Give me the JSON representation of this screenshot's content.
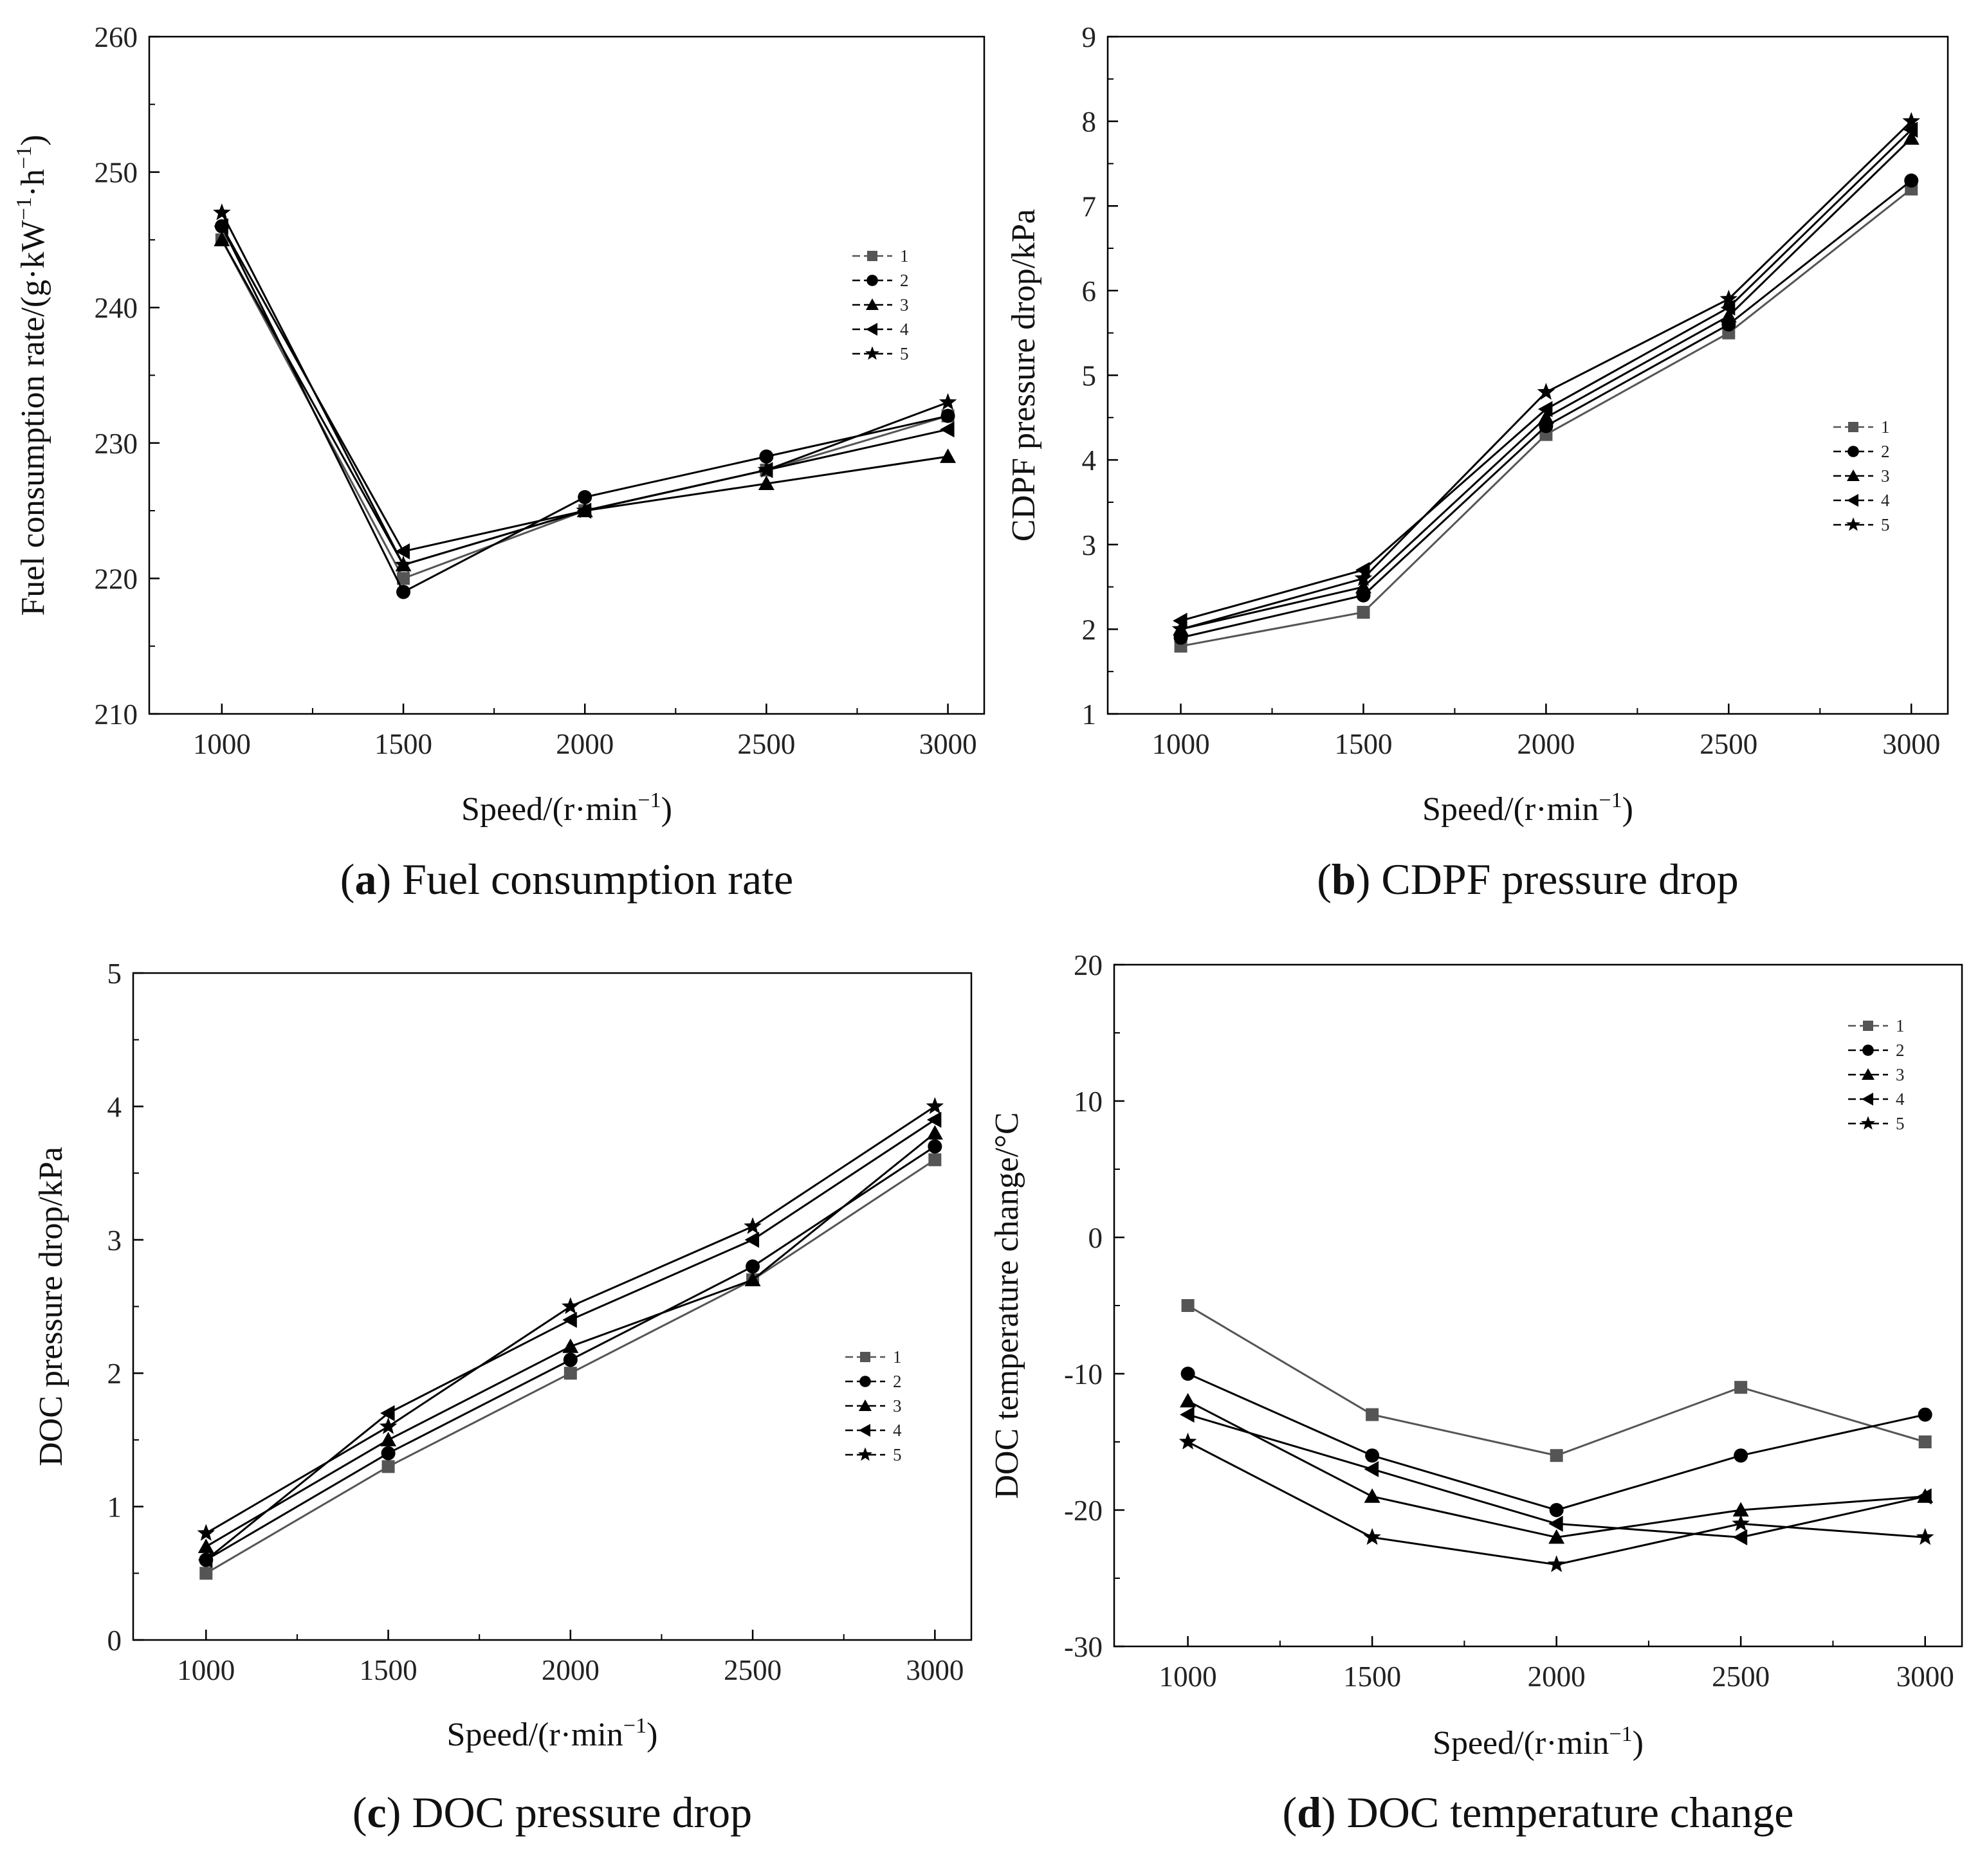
{
  "chart_data": [
    {
      "id": "a",
      "type": "line",
      "caption_letter": "a",
      "caption_text": "Fuel consumption rate",
      "ylabel": "Fuel consumption rate/(g·kW",
      "ylabel_sup1": "−1",
      "ylabel_mid": "·h",
      "ylabel_sup2": "−1",
      "ylabel_end": ")",
      "xlabel": "Speed/(r·min",
      "xlabel_sup": "−1",
      "xlabel_end": ")",
      "x": [
        1000,
        1500,
        2000,
        2500,
        3000
      ],
      "xlim": [
        800,
        3100
      ],
      "ylim": [
        210,
        260
      ],
      "yticks": [
        210,
        220,
        230,
        240,
        250,
        260
      ],
      "legend_position": "right-middle",
      "series": [
        {
          "name": "1",
          "marker": "square",
          "values": [
            245,
            220,
            225,
            228,
            232
          ]
        },
        {
          "name": "2",
          "marker": "circle",
          "values": [
            246,
            219,
            226,
            229,
            232
          ]
        },
        {
          "name": "3",
          "marker": "triangle",
          "values": [
            245,
            221,
            225,
            227,
            229
          ]
        },
        {
          "name": "4",
          "marker": "left-triangle",
          "values": [
            246,
            222,
            225,
            228,
            231
          ]
        },
        {
          "name": "5",
          "marker": "star",
          "values": [
            247,
            221,
            225,
            228,
            233
          ]
        }
      ]
    },
    {
      "id": "b",
      "type": "line",
      "caption_letter": "b",
      "caption_text": "CDPF pressure drop",
      "ylabel": "CDPF pressure drop/kPa",
      "xlabel": "Speed/(r·min",
      "xlabel_sup": "−1",
      "xlabel_end": ")",
      "x": [
        1000,
        1500,
        2000,
        2500,
        3000
      ],
      "xlim": [
        800,
        3100
      ],
      "ylim": [
        1,
        9
      ],
      "yticks": [
        1,
        2,
        3,
        4,
        5,
        6,
        7,
        8,
        9
      ],
      "legend_position": "right-middle",
      "series": [
        {
          "name": "1",
          "marker": "square",
          "values": [
            1.8,
            2.2,
            4.3,
            5.5,
            7.2
          ]
        },
        {
          "name": "2",
          "marker": "circle",
          "values": [
            1.9,
            2.4,
            4.4,
            5.6,
            7.3
          ]
        },
        {
          "name": "3",
          "marker": "triangle",
          "values": [
            2.0,
            2.5,
            4.5,
            5.7,
            7.8
          ]
        },
        {
          "name": "4",
          "marker": "left-triangle",
          "values": [
            2.1,
            2.7,
            4.6,
            5.8,
            7.9
          ]
        },
        {
          "name": "5",
          "marker": "star",
          "values": [
            2.0,
            2.6,
            4.8,
            5.9,
            8.0
          ]
        }
      ]
    },
    {
      "id": "c",
      "type": "line",
      "caption_letter": "c",
      "caption_text": "DOC pressure drop",
      "ylabel": "DOC pressure drop/kPa",
      "xlabel": "Speed/(r·min",
      "xlabel_sup": "−1",
      "xlabel_end": ")",
      "x": [
        1000,
        1500,
        2000,
        2500,
        3000
      ],
      "xlim": [
        800,
        3100
      ],
      "ylim": [
        0,
        5
      ],
      "yticks": [
        0,
        1,
        2,
        3,
        4,
        5
      ],
      "legend_position": "right-middle",
      "series": [
        {
          "name": "1",
          "marker": "square",
          "values": [
            0.5,
            1.3,
            2.0,
            2.7,
            3.6
          ]
        },
        {
          "name": "2",
          "marker": "circle",
          "values": [
            0.6,
            1.4,
            2.1,
            2.8,
            3.7
          ]
        },
        {
          "name": "3",
          "marker": "triangle",
          "values": [
            0.7,
            1.5,
            2.2,
            2.7,
            3.8
          ]
        },
        {
          "name": "4",
          "marker": "left-triangle",
          "values": [
            0.6,
            1.7,
            2.4,
            3.0,
            3.9
          ]
        },
        {
          "name": "5",
          "marker": "star",
          "values": [
            0.8,
            1.6,
            2.5,
            3.1,
            4.0
          ]
        }
      ]
    },
    {
      "id": "d",
      "type": "line",
      "caption_letter": "d",
      "caption_text": "DOC temperature change",
      "ylabel": "DOC temperature change/°C",
      "xlabel": "Speed/(r·min",
      "xlabel_sup": "−1",
      "xlabel_end": ")",
      "x": [
        1000,
        1500,
        2000,
        2500,
        3000
      ],
      "xlim": [
        800,
        3100
      ],
      "ylim": [
        -30,
        20
      ],
      "yticks": [
        -30,
        -20,
        -10,
        0,
        10,
        20
      ],
      "legend_position": "top-right",
      "series": [
        {
          "name": "1",
          "marker": "square",
          "values": [
            -5,
            -13,
            -16,
            -11,
            -15
          ]
        },
        {
          "name": "2",
          "marker": "circle",
          "values": [
            -10,
            -16,
            -20,
            -16,
            -13
          ]
        },
        {
          "name": "3",
          "marker": "triangle",
          "values": [
            -12,
            -19,
            -22,
            -20,
            -19
          ]
        },
        {
          "name": "4",
          "marker": "left-triangle",
          "values": [
            -13,
            -17,
            -21,
            -22,
            -19
          ]
        },
        {
          "name": "5",
          "marker": "star",
          "values": [
            -15,
            -22,
            -24,
            -21,
            -22
          ]
        }
      ]
    }
  ],
  "colors": {
    "series_1": "#555555",
    "series_default": "#000000"
  }
}
